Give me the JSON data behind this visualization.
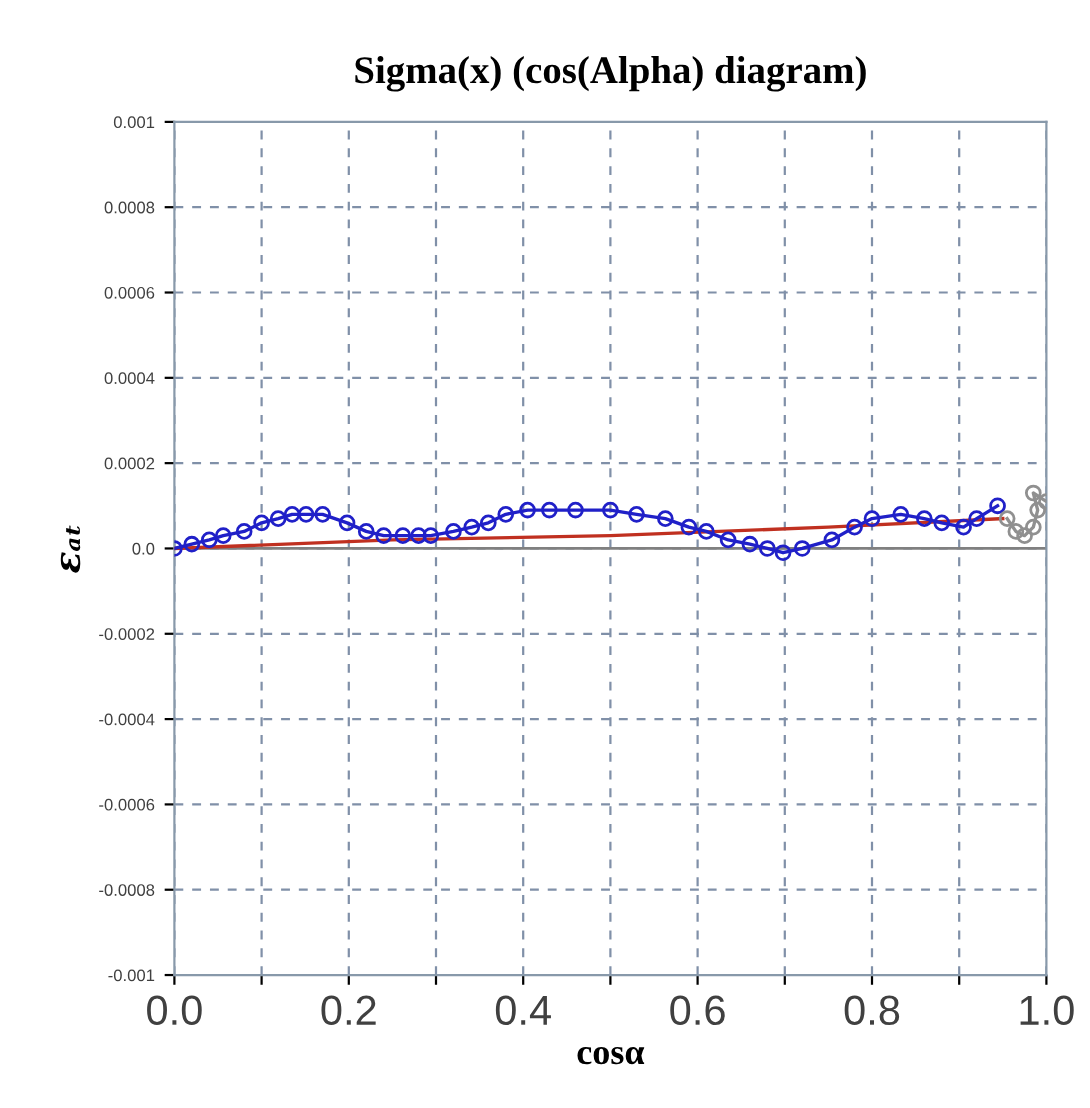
{
  "chart_data": {
    "type": "line",
    "title": "Sigma(x) (cos(Alpha) diagram)",
    "xlabel": "cosα",
    "ylabel": "εₐₜ",
    "xlim": [
      0.0,
      1.0
    ],
    "ylim": [
      -0.001,
      0.001
    ],
    "xticks": [
      {
        "value": 0,
        "label": "0.0"
      },
      {
        "value": 0.1,
        "label": null
      },
      0.2,
      {
        "value": 0.3,
        "label": null
      },
      0.4,
      {
        "value": 0.5,
        "label": null
      },
      0.6,
      {
        "value": 0.7,
        "label": null
      },
      0.8,
      {
        "value": 0.9,
        "label": null
      },
      {
        "value": 1,
        "label": "1.0"
      }
    ],
    "yticks": [
      -0.001,
      -0.0008,
      -0.0006,
      -0.0004,
      -0.0002,
      {
        "value": 0,
        "label": "0.0"
      },
      0.0002,
      0.0004,
      0.0006,
      0.0008,
      0.001
    ],
    "grid": true,
    "legend": false,
    "ref_lines": [
      {
        "axis": "y",
        "value": 0.0,
        "color": "#808080",
        "line_style": "solid"
      }
    ],
    "series": [
      {
        "color": "#c03020",
        "marker": "none",
        "x": [
          0.0,
          0.25,
          0.5,
          0.75,
          0.95
        ],
        "values": [
          0.0,
          2e-05,
          3e-05,
          5e-05,
          7e-05
        ]
      },
      {
        "color": "#2020c8",
        "marker": "circle",
        "x": [
          0.0,
          0.02,
          0.04,
          0.056,
          0.08,
          0.1,
          0.119,
          0.135,
          0.151,
          0.17,
          0.198,
          0.22,
          0.24,
          0.262,
          0.28,
          0.294,
          0.32,
          0.341,
          0.36,
          0.38,
          0.405,
          0.43,
          0.46,
          0.5,
          0.53,
          0.563,
          0.59,
          0.61,
          0.635,
          0.66,
          0.68,
          0.698,
          0.72,
          0.754,
          0.78,
          0.8,
          0.833,
          0.86,
          0.88,
          0.905,
          0.92,
          0.944
        ],
        "values": [
          0.0,
          1e-05,
          2e-05,
          3e-05,
          4e-05,
          6e-05,
          7e-05,
          8e-05,
          8e-05,
          8e-05,
          6e-05,
          4e-05,
          3e-05,
          3e-05,
          3e-05,
          3e-05,
          4e-05,
          5e-05,
          6e-05,
          8e-05,
          9e-05,
          9e-05,
          9e-05,
          9e-05,
          8e-05,
          7e-05,
          5e-05,
          4e-05,
          2e-05,
          1e-05,
          0.0,
          -1e-05,
          0.0,
          2e-05,
          5e-05,
          7e-05,
          8e-05,
          7e-05,
          6e-05,
          5e-05,
          7e-05,
          0.0001
        ]
      },
      {
        "color": "#909090",
        "marker": "circle",
        "x": [
          0.955,
          0.965,
          0.975,
          0.985,
          0.99,
          0.985,
          1.0
        ],
        "values": [
          7e-05,
          4e-05,
          3e-05,
          5e-05,
          9e-05,
          0.00013,
          0.00011
        ]
      }
    ]
  }
}
